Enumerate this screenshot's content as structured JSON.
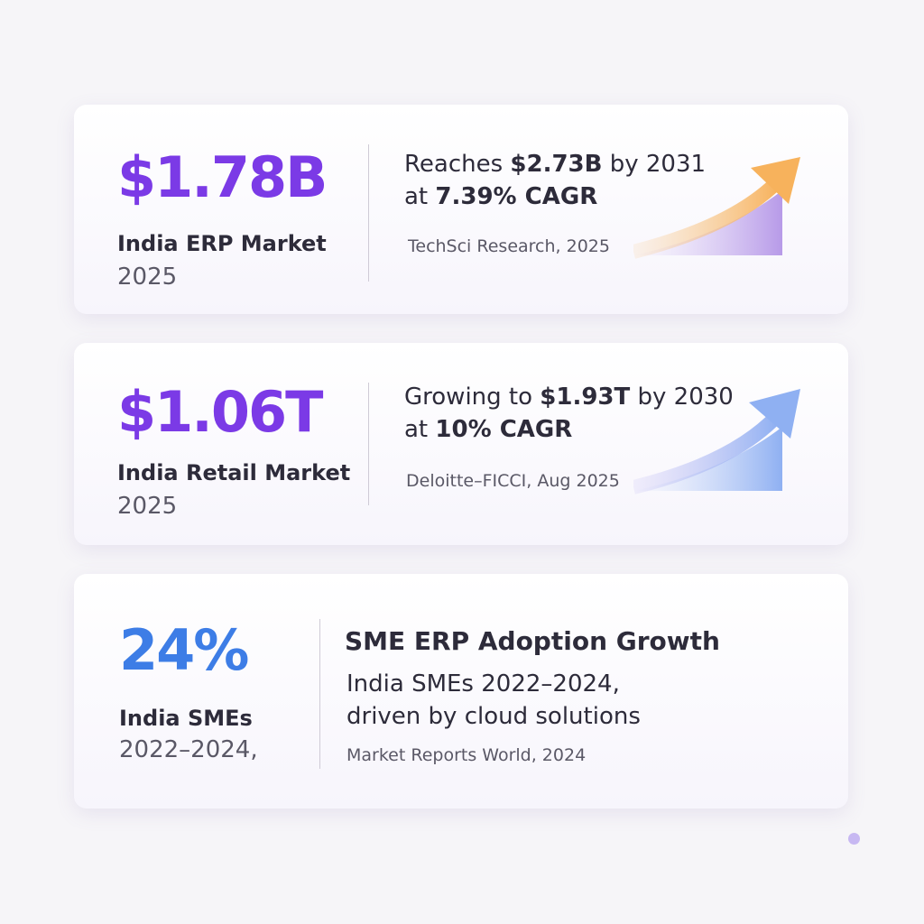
{
  "cards": [
    {
      "stat": "$1.78B",
      "stat_color": "#7b3ae6",
      "label": "India ERP Market",
      "sublabel": "2025",
      "lines": [
        [
          {
            "text": "Reaches "
          },
          {
            "text": "$2.73B",
            "bold": true
          },
          {
            "text": " by 2031"
          }
        ],
        [
          {
            "text": "at "
          },
          {
            "text": "7.39% CAGR",
            "bold": true
          }
        ]
      ],
      "source": "TechSci Research, 2025"
    },
    {
      "stat": "$1.06T",
      "stat_color": "#7b3ae6",
      "label": "India Retail Market",
      "sublabel": "2025",
      "lines": [
        [
          {
            "text": "Growing to "
          },
          {
            "text": "$1.93T",
            "bold": true
          },
          {
            "text": " by 2030"
          }
        ],
        [
          {
            "text": "at "
          },
          {
            "text": "10% CAGR",
            "bold": true
          }
        ]
      ],
      "source": "Deloitte–FICCI, Aug 2025"
    },
    {
      "stat": "24%",
      "stat_color": "#3d7de6",
      "label": "India SMEs",
      "sublabel": "2022–2024,",
      "title": "SME ERP Adoption Growth",
      "lines": [
        [
          {
            "text": "India SMEs 2022–2024,"
          }
        ],
        [
          {
            "text": "driven by cloud solutions"
          }
        ]
      ],
      "source": "Market Reports World, 2024"
    }
  ]
}
